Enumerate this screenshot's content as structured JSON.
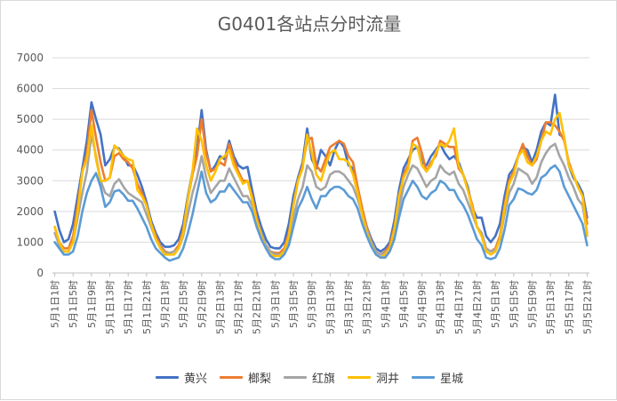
{
  "chart_data": {
    "type": "line",
    "title": "G0401各站点分时流量",
    "xlabel": "",
    "ylabel": "",
    "ylim": [
      0,
      7000
    ],
    "yticks": [
      0,
      1000,
      2000,
      3000,
      4000,
      5000,
      6000,
      7000
    ],
    "grid": "horizontal",
    "legend_position": "bottom",
    "x_tick_labels": [
      "5月1日1时",
      "5月1日5时",
      "5月1日9时",
      "5月1日13时",
      "5月1日17时",
      "5月1日21时",
      "5月2日1时",
      "5月2日5时",
      "5月2日9时",
      "5月2日13时",
      "5月2日17时",
      "5月2日21时",
      "5月3日1时",
      "5月3日5时",
      "5月3日9时",
      "5月3日13时",
      "5月3日17时",
      "5月3日21时",
      "5月4日1时",
      "5月4日5时",
      "5月4日9时",
      "5月4日13时",
      "5月4日17时",
      "5月4日21时",
      "5月5日1时",
      "5月5日5时",
      "5月5日9时",
      "5月5日13时",
      "5月5日17时",
      "5月5日21时"
    ],
    "series": [
      {
        "name": "黄兴",
        "color": "#4472C4",
        "values": [
          2000,
          1400,
          1000,
          1100,
          1600,
          2500,
          3400,
          4300,
          5550,
          5000,
          4500,
          3500,
          3700,
          4100,
          4050,
          3800,
          3500,
          3500,
          3200,
          2800,
          2300,
          1700,
          1300,
          1000,
          850,
          850,
          900,
          1100,
          1600,
          2500,
          3300,
          4000,
          5300,
          4000,
          3300,
          3500,
          3800,
          3700,
          4300,
          3800,
          3500,
          3400,
          3450,
          2700,
          2000,
          1500,
          1100,
          850,
          800,
          800,
          1000,
          1600,
          2500,
          3100,
          3600,
          4700,
          3700,
          3400,
          4000,
          3800,
          3500,
          4000,
          4300,
          4100,
          3500,
          3400,
          2700,
          2000,
          1500,
          1100,
          800,
          700,
          800,
          1000,
          1700,
          2700,
          3400,
          3700,
          4000,
          4100,
          3600,
          3500,
          3800,
          4000,
          4200,
          3900,
          3700,
          3800,
          3600,
          3200,
          2800,
          2100,
          1800,
          1800,
          1200,
          1000,
          1200,
          1600,
          2500,
          3200,
          3400,
          3800,
          4100,
          4000,
          3600,
          4000,
          4600,
          4900,
          4800,
          5800,
          4500,
          4400,
          3500,
          3100,
          2900,
          2600,
          1800
        ]
      },
      {
        "name": "榔梨",
        "color": "#ED7D31",
        "values": [
          1500,
          1000,
          800,
          800,
          1200,
          2200,
          3300,
          3900,
          5300,
          4400,
          3600,
          3000,
          3100,
          3800,
          3900,
          3700,
          3600,
          3400,
          2900,
          2600,
          2200,
          1600,
          1200,
          900,
          700,
          650,
          700,
          900,
          1400,
          2400,
          3200,
          3800,
          5000,
          3900,
          3300,
          3400,
          3600,
          3500,
          4200,
          3700,
          3300,
          3000,
          3000,
          2500,
          1800,
          1300,
          900,
          700,
          650,
          650,
          800,
          1300,
          2200,
          3000,
          3500,
          4300,
          4400,
          3500,
          3300,
          3700,
          4100,
          4200,
          4300,
          4200,
          3800,
          3600,
          2800,
          2100,
          1500,
          1000,
          700,
          600,
          700,
          900,
          1500,
          2400,
          3200,
          3500,
          4300,
          4400,
          3900,
          3300,
          3600,
          3800,
          4300,
          4200,
          4100,
          4100,
          3400,
          3200,
          2700,
          2200,
          1500,
          1300,
          800,
          700,
          800,
          1200,
          2200,
          3000,
          3300,
          3800,
          4200,
          3800,
          3500,
          3700,
          4300,
          4900,
          4900,
          4800,
          4600,
          4300,
          3600,
          3200,
          2800,
          2500,
          1600
        ]
      },
      {
        "name": "红旗",
        "color": "#A5A5A5",
        "values": [
          1300,
          900,
          700,
          700,
          1000,
          1800,
          2600,
          3300,
          4500,
          3800,
          3000,
          2600,
          2500,
          2900,
          3050,
          2800,
          2600,
          2500,
          2400,
          2300,
          1900,
          1500,
          1100,
          850,
          650,
          650,
          700,
          800,
          1200,
          1900,
          2600,
          3100,
          3800,
          3100,
          2600,
          2800,
          3000,
          3000,
          3400,
          3100,
          2800,
          2500,
          2500,
          2200,
          1700,
          1300,
          900,
          700,
          600,
          600,
          700,
          1100,
          1800,
          2400,
          2800,
          3500,
          3300,
          2800,
          2700,
          2800,
          3200,
          3300,
          3300,
          3200,
          3000,
          2800,
          2400,
          1900,
          1400,
          1000,
          700,
          600,
          650,
          800,
          1300,
          2100,
          2800,
          3200,
          3500,
          3400,
          3100,
          2800,
          3000,
          3100,
          3500,
          3300,
          3200,
          3300,
          2900,
          2700,
          2300,
          1900,
          1500,
          1300,
          800,
          700,
          750,
          1100,
          1900,
          2600,
          2900,
          3400,
          3300,
          3200,
          2900,
          3100,
          3600,
          3900,
          4100,
          4200,
          3800,
          3500,
          3100,
          2800,
          2400,
          2200,
          1300
        ]
      },
      {
        "name": "洞井",
        "color": "#FFC000",
        "values": [
          1500,
          1000,
          700,
          700,
          1000,
          2000,
          3300,
          3700,
          4800,
          3700,
          3000,
          3000,
          3100,
          4150,
          4000,
          3800,
          3700,
          3650,
          2700,
          2500,
          2200,
          1600,
          1100,
          800,
          600,
          600,
          600,
          800,
          1300,
          2400,
          3300,
          4700,
          4300,
          3500,
          3000,
          3300,
          3700,
          3800,
          4000,
          3500,
          3200,
          2900,
          3000,
          2400,
          1700,
          1200,
          800,
          600,
          550,
          550,
          700,
          1200,
          2200,
          3000,
          3400,
          4500,
          3900,
          3200,
          3000,
          3500,
          3900,
          4000,
          3700,
          3700,
          3600,
          3200,
          2600,
          1900,
          1300,
          900,
          600,
          500,
          600,
          800,
          1400,
          2500,
          3100,
          3400,
          4200,
          4100,
          3500,
          3300,
          3500,
          3900,
          4200,
          4100,
          4300,
          4700,
          3500,
          3200,
          2700,
          2100,
          1500,
          1200,
          700,
          600,
          700,
          1100,
          2100,
          2900,
          3200,
          3800,
          4000,
          3600,
          3500,
          3800,
          4300,
          4600,
          4500,
          5000,
          5200,
          4400,
          3500,
          3200,
          2800,
          2500,
          1200
        ]
      },
      {
        "name": "星城",
        "color": "#5B9BD5",
        "values": [
          1000,
          800,
          600,
          600,
          700,
          1200,
          2000,
          2600,
          3000,
          3250,
          2800,
          2150,
          2300,
          2650,
          2700,
          2550,
          2350,
          2350,
          2100,
          1800,
          1500,
          1100,
          800,
          650,
          500,
          400,
          450,
          500,
          800,
          1300,
          1900,
          2600,
          3300,
          2600,
          2300,
          2400,
          2650,
          2650,
          2900,
          2700,
          2500,
          2300,
          2300,
          2000,
          1500,
          1100,
          800,
          550,
          450,
          450,
          600,
          900,
          1500,
          2100,
          2400,
          2800,
          2400,
          2100,
          2500,
          2500,
          2700,
          2800,
          2800,
          2700,
          2500,
          2400,
          2100,
          1600,
          1200,
          850,
          600,
          500,
          500,
          700,
          1100,
          1800,
          2400,
          2700,
          3000,
          2800,
          2500,
          2400,
          2600,
          2700,
          3000,
          2900,
          2700,
          2700,
          2400,
          2200,
          1900,
          1500,
          1100,
          900,
          500,
          450,
          500,
          800,
          1400,
          2200,
          2400,
          2750,
          2700,
          2600,
          2550,
          2700,
          3100,
          3200,
          3400,
          3500,
          3300,
          2800,
          2500,
          2200,
          1900,
          1600,
          900
        ]
      }
    ]
  }
}
